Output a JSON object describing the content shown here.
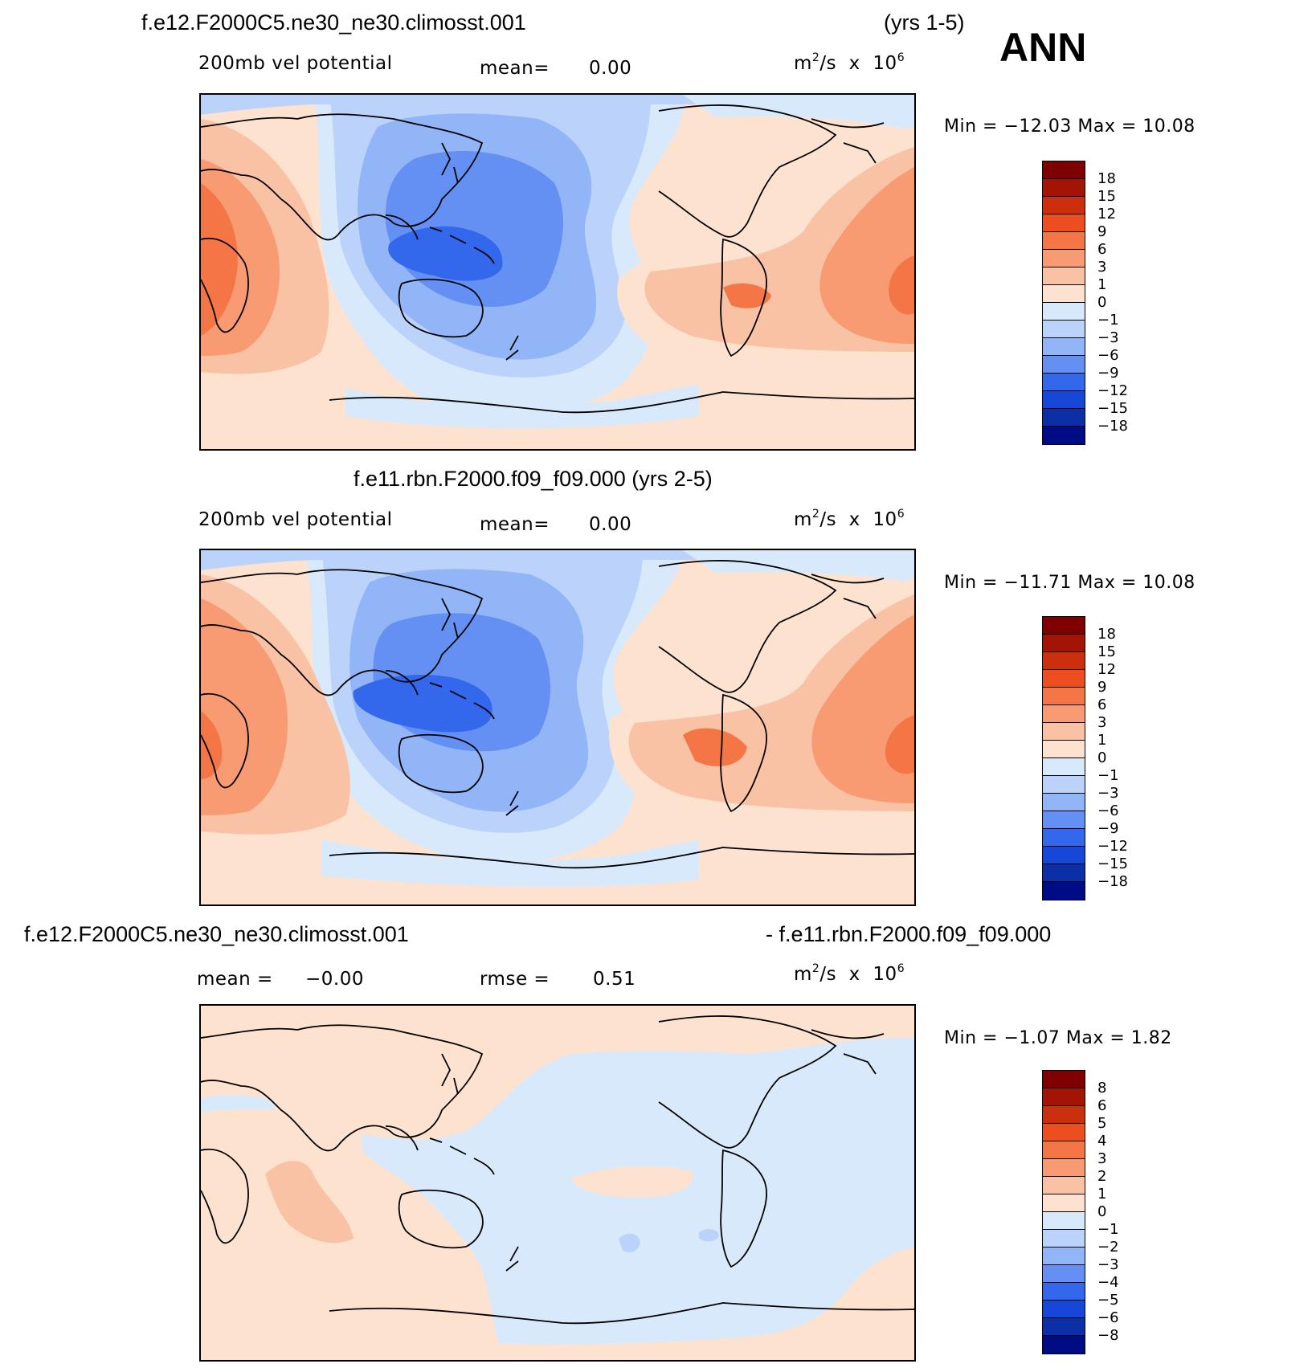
{
  "colors": {
    "levels_pos": [
      "#fde3cf",
      "#f9c2a4",
      "#f89a72",
      "#f47546",
      "#ec4e20",
      "#cb2f0e",
      "#a41405",
      "#7e0000"
    ],
    "levels_neg": [
      "#d8e9fb",
      "#bbd3fa",
      "#92b5f7",
      "#6490f3",
      "#3368ec",
      "#1747d8",
      "#0c2ea7",
      "#000c85"
    ]
  },
  "header": {
    "ann": "ANN"
  },
  "panels": [
    {
      "title_left": "f.e12.F2000C5.ne30_ne30.climosst.001",
      "title_right": "(yrs 1-5)",
      "field_label": "200mb  vel  potential",
      "stat1": "mean=",
      "stat1_val": "0.00",
      "units": "m²/s  x  10⁶",
      "minmax": "Min  =  −12.03  Max  =    10.08",
      "cbar_labels": [
        "18",
        "15",
        "12",
        "9",
        "6",
        "3",
        "1",
        "0",
        "−1",
        "−3",
        "−6",
        "−9",
        "−12",
        "−15",
        "−18"
      ]
    },
    {
      "title": "f.e11.rbn.F2000.f09_f09.000 (yrs 2-5)",
      "field_label": "200mb  vel  potential",
      "stat1": "mean=",
      "stat1_val": "0.00",
      "units": "m²/s  x  10⁶",
      "minmax": "Min  =  −11.71  Max  =    10.08",
      "cbar_labels": [
        "18",
        "15",
        "12",
        "9",
        "6",
        "3",
        "1",
        "0",
        "−1",
        "−3",
        "−6",
        "−9",
        "−12",
        "−15",
        "−18"
      ]
    },
    {
      "title_left": "f.e12.F2000C5.ne30_ne30.climosst.001",
      "title_right": "- f.e11.rbn.F2000.f09_f09.000",
      "stat1": "mean  =",
      "stat1_val": "−0.00",
      "stat2": "rmse  =",
      "stat2_val": "0.51",
      "units": "m²/s  x  10⁶",
      "minmax": "Min  =    −1.07  Max  =     1.82",
      "cbar_labels": [
        "8",
        "6",
        "5",
        "4",
        "3",
        "2",
        "1",
        "0",
        "−1",
        "−2",
        "−3",
        "−4",
        "−5",
        "−6",
        "−8"
      ]
    }
  ]
}
